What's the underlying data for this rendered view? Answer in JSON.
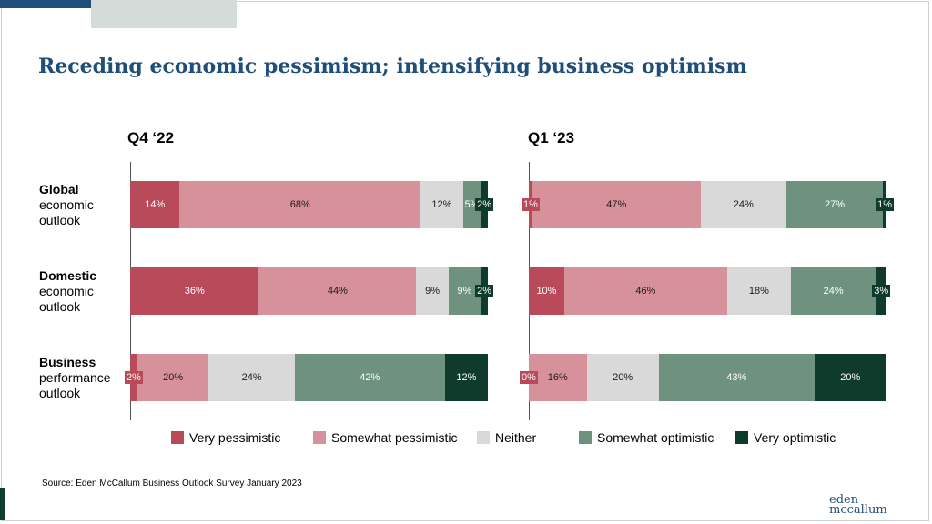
{
  "title": "Receding economic pessimism; intensifying business optimism",
  "source": "Source: Eden McCallum Business Outlook Survey January 2023",
  "logo": {
    "line1": "eden",
    "line2": "mccallum"
  },
  "rows": [
    {
      "bold": "Global",
      "rest": [
        "economic",
        "outlook"
      ]
    },
    {
      "bold": "Domestic",
      "rest": [
        "economic",
        "outlook"
      ]
    },
    {
      "bold": "Business",
      "rest": [
        "performance",
        "outlook"
      ]
    }
  ],
  "colors": {
    "very_pessimistic": "#b84a5a",
    "somewhat_pessimistic": "#d7919a",
    "neither": "#d9d9d9",
    "somewhat_optimistic": "#6f927e",
    "very_optimistic": "#0e3b2b"
  },
  "chart_data": {
    "type": "bar",
    "orientation": "horizontal",
    "stacked": true,
    "legend_position": "bottom",
    "categories": [
      "Global economic outlook",
      "Domestic economic outlook",
      "Business performance outlook"
    ],
    "series_names": [
      "Very pessimistic",
      "Somewhat pessimistic",
      "Neither",
      "Somewhat optimistic",
      "Very optimistic"
    ],
    "panels": [
      {
        "title": "Q4 ‘22",
        "series": [
          {
            "name": "Very pessimistic",
            "values": [
              14,
              36,
              2
            ]
          },
          {
            "name": "Somewhat pessimistic",
            "values": [
              68,
              44,
              20
            ]
          },
          {
            "name": "Neither",
            "values": [
              12,
              9,
              24
            ]
          },
          {
            "name": "Somewhat optimistic",
            "values": [
              5,
              9,
              42
            ]
          },
          {
            "name": "Very optimistic",
            "values": [
              2,
              2,
              12
            ]
          }
        ]
      },
      {
        "title": "Q1 ‘23",
        "series": [
          {
            "name": "Very pessimistic",
            "values": [
              1,
              10,
              0
            ]
          },
          {
            "name": "Somewhat pessimistic",
            "values": [
              47,
              46,
              16
            ]
          },
          {
            "name": "Neither",
            "values": [
              24,
              18,
              20
            ]
          },
          {
            "name": "Somewhat optimistic",
            "values": [
              27,
              24,
              43
            ]
          },
          {
            "name": "Very optimistic",
            "values": [
              1,
              3,
              20
            ]
          }
        ]
      }
    ]
  }
}
